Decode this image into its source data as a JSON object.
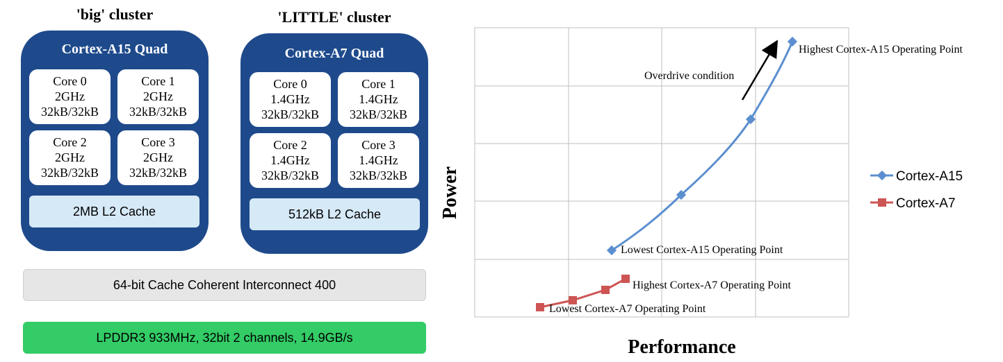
{
  "big_cluster": {
    "title": "'big' cluster",
    "name": "Cortex-A15 Quad",
    "cores": [
      {
        "label": "Core 0",
        "freq": "2GHz",
        "cache": "32kB/32kB"
      },
      {
        "label": "Core 1",
        "freq": "2GHz",
        "cache": "32kB/32kB"
      },
      {
        "label": "Core 2",
        "freq": "2GHz",
        "cache": "32kB/32kB"
      },
      {
        "label": "Core 3",
        "freq": "2GHz",
        "cache": "32kB/32kB"
      }
    ],
    "l2": "2MB L2 Cache",
    "color": "#1e4a8c"
  },
  "little_cluster": {
    "title": "'LITTLE' cluster",
    "name": "Cortex-A7 Quad",
    "cores": [
      {
        "label": "Core 0",
        "freq": "1.4GHz",
        "cache": "32kB/32kB"
      },
      {
        "label": "Core 1",
        "freq": "1.4GHz",
        "cache": "32kB/32kB"
      },
      {
        "label": "Core 2",
        "freq": "1.4GHz",
        "cache": "32kB/32kB"
      },
      {
        "label": "Core 3",
        "freq": "1.4GHz",
        "cache": "32kB/32kB"
      }
    ],
    "l2": "512kB L2 Cache",
    "color": "#1e4a8c"
  },
  "interconnect": {
    "label": "64-bit Cache Coherent Interconnect 400",
    "color": "#e6e6e6"
  },
  "memory": {
    "label": "LPDDR3 933MHz, 32bit 2 channels, 14.9GB/s",
    "color": "#33cc66"
  },
  "chart": {
    "xlabel": "Performance",
    "ylabel": "Power",
    "legend": [
      "Cortex-A15",
      "Cortex-A7"
    ],
    "annotations": {
      "highest_a15": "Highest Cortex-A15 Operating Point",
      "lowest_a15": "Lowest Cortex-A15 Operating Point",
      "highest_a7": "Highest Cortex-A7 Operating Point",
      "lowest_a7": "Lowest Cortex-A7 Operating Point",
      "overdrive": "Overdrive condition"
    },
    "colors": {
      "a15": "#5b8fcf",
      "a7": "#cd5554",
      "grid": "#bfbfbf"
    }
  }
}
